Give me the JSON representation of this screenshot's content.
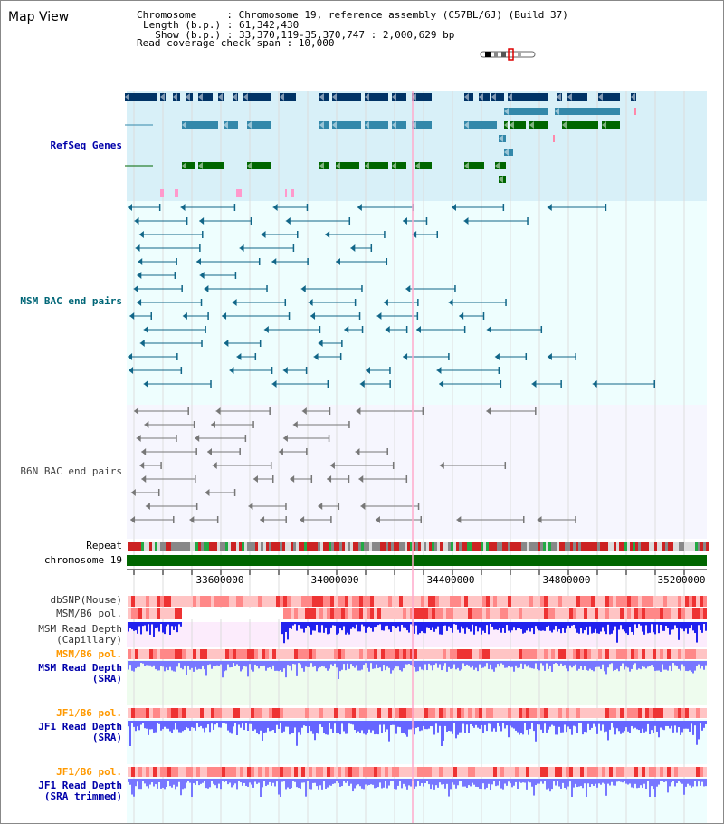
{
  "title": "Map View",
  "info": {
    "chromosome": "Chromosome     : Chromosome 19, reference assembly (C57BL/6J) (Build 37)",
    "length": "Length (b.p.) : 61,342,430",
    "show": "  Show (b.p.) : 33,370,119-35,370,747 : 2,000,629 bp",
    "coverage": "Read coverage check span : 10,000"
  },
  "tracks": {
    "refseq": "RefSeq Genes",
    "msm_bac": "MSM BAC end pairs",
    "b6n_bac": "B6N BAC end pairs",
    "repeat": "Repeat",
    "chromosome": "chromosome 19",
    "dbsnp": "dbSNP(Mouse)",
    "msm_b6_pol_1": "MSM/B6 pol.",
    "msm_depth_cap": "MSM Read Depth\n(Capillary)",
    "msm_b6_pol_2": "MSM/B6 pol.",
    "msm_depth_sra": "MSM Read Depth\n(SRA)",
    "jf1_b6_pol_1": "JF1/B6 pol.",
    "jf1_depth_sra": "JF1 Read Depth\n(SRA)",
    "jf1_b6_pol_2": "JF1/B6 pol.",
    "jf1_depth_trim": "JF1 Read Depth\n(SRA trimmed)"
  },
  "axis": {
    "ticks": [
      "33600000",
      "34000000",
      "34400000",
      "34800000",
      "35200000"
    ]
  },
  "colors": {
    "refseq_label": "#0000aa",
    "msm_label": "#006677",
    "orange_label": "#ff9900",
    "blue_label": "#0000aa",
    "refseq_bg": "#d8f0f8",
    "msm_bg": "#eefefe",
    "b6n_bg": "#f6f6fe",
    "gene_dark": "#003366",
    "gene_mid": "#3388aa",
    "gene_green": "#006600",
    "chrom_green": "#006600",
    "depth_blue": "#2222ee",
    "depth_light": "#7777ff"
  }
}
